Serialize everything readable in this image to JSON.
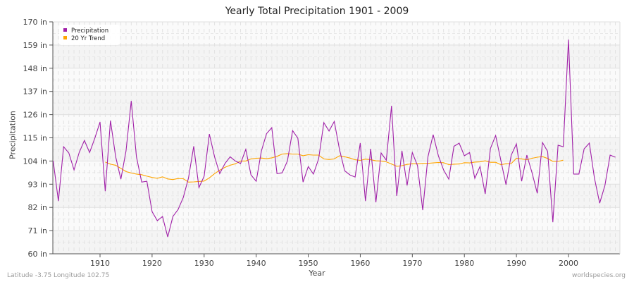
{
  "chart_data": {
    "type": "line",
    "title": "Yearly Total Precipitation 1901 - 2009",
    "xlabel": "Year",
    "ylabel": "Precipitation",
    "xlim": [
      1901,
      2009
    ],
    "ylim": [
      60,
      170
    ],
    "yticks": [
      60,
      71,
      82,
      93,
      104,
      115,
      126,
      137,
      148,
      159,
      170
    ],
    "ytick_labels": [
      "60 in",
      "71 in",
      "82 in",
      "93 in",
      "104 in",
      "115 in",
      "126 in",
      "137 in",
      "148 in",
      "159 in",
      "170 in"
    ],
    "xticks": [
      1910,
      1920,
      1930,
      1940,
      1950,
      1960,
      1970,
      1980,
      1990,
      2000
    ],
    "grid": true,
    "legend_position": "top-left",
    "series": [
      {
        "name": "Precipitation",
        "color": "#a020a8",
        "x_start": 1901,
        "values": [
          104.1,
          85,
          110.8,
          107.8,
          99.8,
          108,
          113.8,
          108,
          114.8,
          122.5,
          89.7,
          123.2,
          106,
          95.4,
          108.8,
          132.5,
          106,
          94,
          94.4,
          80,
          75.7,
          77.7,
          68,
          77.7,
          81,
          86.7,
          96,
          111,
          91.4,
          96.8,
          116.8,
          106,
          98,
          102.8,
          106,
          104,
          102.8,
          109.5,
          97.4,
          94.4,
          108.8,
          117,
          119.8,
          98,
          98.4,
          104,
          118.4,
          114.8,
          94,
          101.4,
          97.8,
          105,
          122.2,
          118.2,
          122.8,
          109.5,
          99.4,
          97.4,
          96.4,
          112.5,
          85,
          109.8,
          84.4,
          107.8,
          104.4,
          130.2,
          87.4,
          108.8,
          92.4,
          108,
          101.8,
          80.7,
          106,
          116.5,
          106.5,
          99.8,
          95.4,
          111,
          112.5,
          106.5,
          108,
          95.8,
          101.4,
          88.4,
          110,
          116.1,
          104.4,
          92.8,
          106.8,
          112.1,
          94.4,
          106.8,
          98.4,
          88.7,
          112.8,
          108.5,
          75,
          111.5,
          110.8,
          161.6,
          97.8,
          97.8,
          109.8,
          112.5,
          95.8,
          84,
          92.4,
          106.8,
          105.8
        ]
      },
      {
        "name": "20 Yr Trend",
        "color": "#ffa500",
        "x_start": 1911,
        "values": [
          103.5,
          102.5,
          102,
          100.5,
          99,
          98.3,
          97.8,
          97.5,
          96.8,
          96.2,
          95.8,
          96.5,
          95.5,
          95.2,
          95.7,
          95.6,
          94,
          94.1,
          94.3,
          94.5,
          96,
          98,
          99.7,
          101,
          102,
          102.7,
          104,
          104,
          105,
          105.3,
          105.4,
          105.1,
          105.5,
          106.2,
          107.3,
          107.5,
          107.3,
          107.3,
          106.5,
          107,
          106.8,
          106.8,
          105,
          104.7,
          105,
          106.5,
          106,
          105.4,
          104.6,
          104.3,
          104.9,
          104.6,
          104.1,
          104,
          103.6,
          102.6,
          101.5,
          101.8,
          102.4,
          102.7,
          102.7,
          102.9,
          102.9,
          103.1,
          103.3,
          103.2,
          102.3,
          102.5,
          102.6,
          103.2,
          103.1,
          103.5,
          103.6,
          104.1,
          103.4,
          103.4,
          102.3,
          102.7,
          102.8,
          105.3,
          105,
          104.6,
          105.3,
          105.8,
          106.1,
          105.2,
          103.8,
          103.8,
          104.4
        ]
      }
    ]
  },
  "footer": {
    "location": "Latitude -3.75 Longitude 102.75",
    "source": "worldspecies.org"
  }
}
